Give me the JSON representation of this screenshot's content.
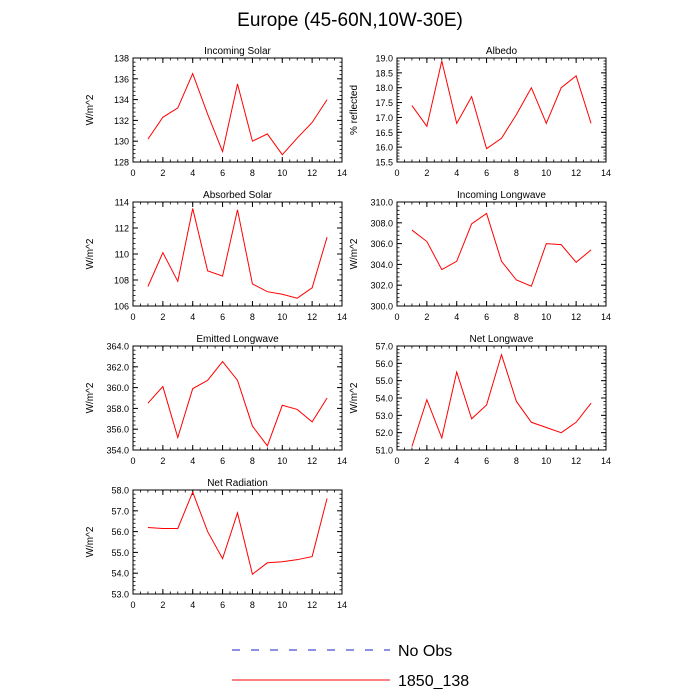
{
  "title": "Europe (45-60N,10W-30E)",
  "colors": {
    "line": "#ff0000",
    "no_obs": "#1e1ecc",
    "axis": "#000000"
  },
  "legend": {
    "items": [
      {
        "label": "No Obs",
        "color": "#1e1ecc",
        "style": "dashed"
      },
      {
        "label": "1850_138",
        "color": "#ff0000",
        "style": "solid"
      }
    ]
  },
  "chart_data": [
    {
      "type": "line",
      "title": "Incoming Solar",
      "ylabel": "W/m^2",
      "xlim": [
        0,
        14
      ],
      "ylim": [
        128,
        138
      ],
      "xticks": [
        "0",
        "2",
        "4",
        "6",
        "8",
        "10",
        "12",
        "14"
      ],
      "yticks": [
        "128",
        "130",
        "132",
        "134",
        "136",
        "138"
      ],
      "x": [
        1,
        2,
        3,
        4,
        5,
        6,
        7,
        8,
        9,
        10,
        11,
        12,
        13
      ],
      "series": [
        {
          "name": "1850_138",
          "values": [
            130.2,
            132.3,
            133.2,
            136.5,
            132.6,
            129.0,
            135.5,
            130.0,
            130.7,
            128.7,
            130.3,
            131.8,
            134.0
          ]
        }
      ]
    },
    {
      "type": "line",
      "title": "Albedo",
      "ylabel": "% reflected",
      "xlim": [
        0,
        14
      ],
      "ylim": [
        15.5,
        19.0
      ],
      "xticks": [
        "0",
        "2",
        "4",
        "6",
        "8",
        "10",
        "12",
        "14"
      ],
      "yticks": [
        "15.5",
        "16.0",
        "16.5",
        "17.0",
        "17.5",
        "18.0",
        "18.5",
        "19.0"
      ],
      "x": [
        1,
        2,
        3,
        4,
        5,
        6,
        7,
        8,
        9,
        10,
        11,
        12,
        13
      ],
      "series": [
        {
          "name": "1850_138",
          "values": [
            17.4,
            16.7,
            18.9,
            16.8,
            17.7,
            15.95,
            16.3,
            17.1,
            18.0,
            16.8,
            18.0,
            18.4,
            16.8
          ]
        }
      ]
    },
    {
      "type": "line",
      "title": "Absorbed Solar",
      "ylabel": "W/m^2",
      "xlim": [
        0,
        14
      ],
      "ylim": [
        106,
        114
      ],
      "xticks": [
        "0",
        "2",
        "4",
        "6",
        "8",
        "10",
        "12",
        "14"
      ],
      "yticks": [
        "106",
        "108",
        "110",
        "112",
        "114"
      ],
      "x": [
        1,
        2,
        3,
        4,
        5,
        6,
        7,
        8,
        9,
        10,
        11,
        12,
        13
      ],
      "series": [
        {
          "name": "1850_138",
          "values": [
            107.5,
            110.1,
            107.9,
            113.5,
            108.7,
            108.3,
            113.4,
            107.7,
            107.1,
            106.9,
            106.6,
            107.4,
            111.3
          ]
        }
      ]
    },
    {
      "type": "line",
      "title": "Incoming Longwave",
      "ylabel": "W/m^2",
      "xlim": [
        0,
        14
      ],
      "ylim": [
        300,
        310
      ],
      "xticks": [
        "0",
        "2",
        "4",
        "6",
        "8",
        "10",
        "12",
        "14"
      ],
      "yticks": [
        "300.0",
        "302.0",
        "304.0",
        "306.0",
        "308.0",
        "310.0"
      ],
      "x": [
        1,
        2,
        3,
        4,
        5,
        6,
        7,
        8,
        9,
        10,
        11,
        12,
        13
      ],
      "series": [
        {
          "name": "1850_138",
          "values": [
            307.3,
            306.2,
            303.5,
            304.3,
            307.9,
            308.9,
            304.3,
            302.5,
            301.9,
            306.0,
            305.9,
            304.2,
            305.4
          ]
        }
      ]
    },
    {
      "type": "line",
      "title": "Emitted Longwave",
      "ylabel": "W/m^2",
      "xlim": [
        0,
        14
      ],
      "ylim": [
        354,
        364
      ],
      "xticks": [
        "0",
        "2",
        "4",
        "6",
        "8",
        "10",
        "12",
        "14"
      ],
      "yticks": [
        "354.0",
        "356.0",
        "358.0",
        "360.0",
        "362.0",
        "364.0"
      ],
      "x": [
        1,
        2,
        3,
        4,
        5,
        6,
        7,
        8,
        9,
        10,
        11,
        12,
        13
      ],
      "series": [
        {
          "name": "1850_138",
          "values": [
            358.5,
            360.1,
            355.2,
            359.9,
            360.7,
            362.5,
            360.7,
            356.3,
            354.4,
            358.3,
            357.9,
            356.7,
            359.0
          ]
        }
      ]
    },
    {
      "type": "line",
      "title": "Net Longwave",
      "ylabel": "W/m^2",
      "xlim": [
        0,
        14
      ],
      "ylim": [
        51,
        57
      ],
      "xticks": [
        "0",
        "2",
        "4",
        "6",
        "8",
        "10",
        "12",
        "14"
      ],
      "yticks": [
        "51.0",
        "52.0",
        "53.0",
        "54.0",
        "55.0",
        "56.0",
        "57.0"
      ],
      "x": [
        1,
        2,
        3,
        4,
        5,
        6,
        7,
        8,
        9,
        10,
        11,
        12,
        13
      ],
      "series": [
        {
          "name": "1850_138",
          "values": [
            51.2,
            53.9,
            51.7,
            55.5,
            52.8,
            53.6,
            56.5,
            53.8,
            52.6,
            52.3,
            52.0,
            52.6,
            53.7
          ]
        }
      ]
    },
    {
      "type": "line",
      "title": "Net Radiation",
      "ylabel": "W/m^2",
      "xlim": [
        0,
        14
      ],
      "ylim": [
        53,
        58
      ],
      "xticks": [
        "0",
        "2",
        "4",
        "6",
        "8",
        "10",
        "12",
        "14"
      ],
      "yticks": [
        "53.0",
        "54.0",
        "55.0",
        "56.0",
        "57.0",
        "58.0"
      ],
      "x": [
        1,
        2,
        3,
        4,
        5,
        6,
        7,
        8,
        9,
        10,
        11,
        12,
        13
      ],
      "series": [
        {
          "name": "1850_138",
          "values": [
            56.2,
            56.15,
            56.15,
            57.9,
            56.0,
            54.7,
            56.9,
            53.95,
            54.5,
            54.55,
            54.65,
            54.8,
            57.6
          ]
        }
      ]
    }
  ]
}
